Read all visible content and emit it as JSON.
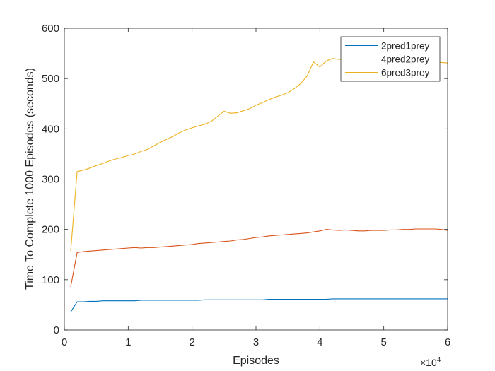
{
  "chart_data": {
    "type": "line",
    "xlabel": "Episodes",
    "ylabel": "Time To Complete 1000 Episodes (seconds)",
    "x_exponent_label": "×10",
    "x_exponent_power": "4",
    "xlim": [
      0,
      6
    ],
    "ylim": [
      0,
      600
    ],
    "x_ticks": [
      0,
      1,
      2,
      3,
      4,
      5,
      6
    ],
    "y_ticks": [
      0,
      100,
      200,
      300,
      400,
      500,
      600
    ],
    "grid": false,
    "legend_position": "top-right",
    "x": [
      0.1,
      0.2,
      0.3,
      0.4,
      0.5,
      0.6,
      0.7,
      0.8,
      0.9,
      1.0,
      1.1,
      1.2,
      1.3,
      1.4,
      1.5,
      1.6,
      1.7,
      1.8,
      1.9,
      2.0,
      2.1,
      2.2,
      2.3,
      2.4,
      2.5,
      2.6,
      2.7,
      2.8,
      2.9,
      3.0,
      3.1,
      3.2,
      3.3,
      3.4,
      3.5,
      3.6,
      3.7,
      3.8,
      3.9,
      4.0,
      4.1,
      4.2,
      4.3,
      4.4,
      4.5,
      4.6,
      4.7,
      4.8,
      4.9,
      5.0,
      5.1,
      5.2,
      5.3,
      5.4,
      5.5,
      5.6,
      5.7,
      5.8,
      5.9,
      6.0
    ],
    "series": [
      {
        "name": "2pred1prey",
        "color": "#0072BD",
        "values": [
          36,
          56,
          56,
          57,
          57,
          58,
          58,
          58,
          58,
          58,
          58,
          59,
          59,
          59,
          59,
          59,
          59,
          59,
          59,
          59,
          59,
          60,
          60,
          60,
          60,
          60,
          60,
          60,
          60,
          60,
          60,
          61,
          61,
          61,
          61,
          61,
          61,
          61,
          61,
          61,
          61,
          62,
          62,
          62,
          62,
          62,
          62,
          62,
          62,
          62,
          62,
          62,
          62,
          62,
          62,
          62,
          62,
          62,
          62,
          62
        ]
      },
      {
        "name": "4pred2prey",
        "color": "#D95319",
        "values": [
          86,
          154,
          156,
          157,
          158,
          159,
          160,
          161,
          162,
          163,
          164,
          163,
          164,
          164,
          165,
          166,
          167,
          168,
          169,
          170,
          172,
          173,
          174,
          175,
          176,
          177,
          179,
          180,
          182,
          184,
          185,
          187,
          188,
          189,
          190,
          191,
          192,
          193,
          195,
          197,
          200,
          199,
          198,
          199,
          198,
          197,
          197,
          198,
          198,
          198,
          199,
          199,
          200,
          200,
          201,
          201,
          201,
          201,
          200,
          198
        ]
      },
      {
        "name": "6pred3prey",
        "color": "#EDB120",
        "values": [
          157,
          315,
          318,
          322,
          327,
          331,
          336,
          340,
          343,
          347,
          350,
          355,
          359,
          366,
          373,
          379,
          385,
          392,
          398,
          402,
          406,
          409,
          415,
          425,
          435,
          431,
          432,
          436,
          440,
          447,
          452,
          458,
          463,
          467,
          472,
          480,
          490,
          505,
          533,
          523,
          535,
          540,
          538,
          538,
          539,
          539,
          538,
          538,
          537,
          537,
          537,
          536,
          536,
          535,
          535,
          534,
          534,
          533,
          532,
          531
        ]
      }
    ]
  }
}
